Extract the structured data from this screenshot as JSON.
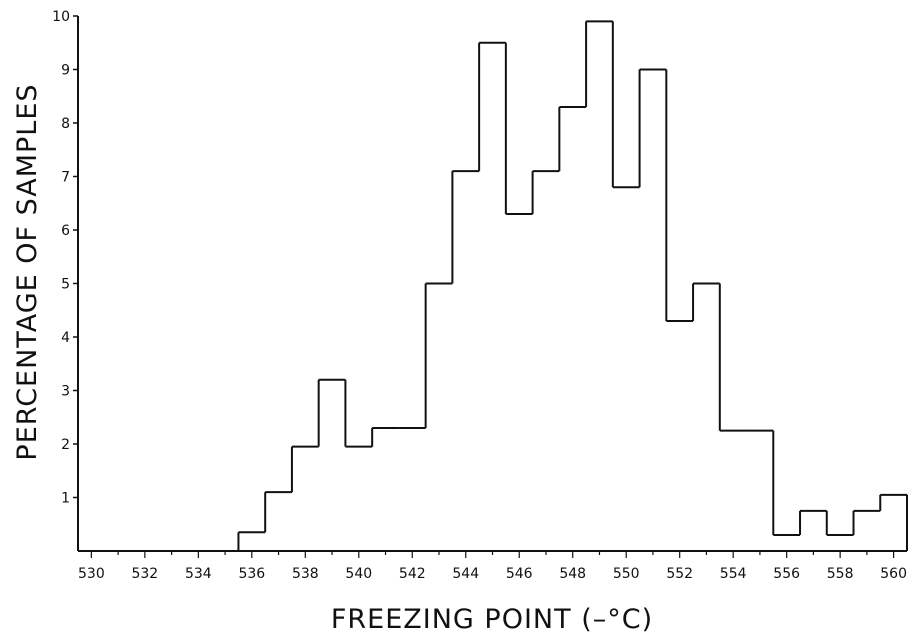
{
  "chart_data": {
    "type": "bar",
    "subtype": "histogram-step",
    "title": "",
    "xlabel": "FREEZING POINT (–°C)",
    "ylabel": "PERCENTAGE OF SAMPLES",
    "xlim": [
      529.5,
      560.5
    ],
    "ylim": [
      0,
      10
    ],
    "x_ticks": [
      530,
      532,
      534,
      536,
      538,
      540,
      542,
      544,
      546,
      548,
      550,
      552,
      554,
      556,
      558,
      560
    ],
    "y_ticks": [
      1,
      2,
      3,
      4,
      5,
      6,
      7,
      8,
      9,
      10
    ],
    "grid": false,
    "legend": "none",
    "bin_width": 1,
    "bins": [
      {
        "x": 536,
        "value": 0.35
      },
      {
        "x": 537,
        "value": 1.1
      },
      {
        "x": 538,
        "value": 1.95
      },
      {
        "x": 539,
        "value": 3.2
      },
      {
        "x": 540,
        "value": 1.95
      },
      {
        "x": 541,
        "value": 2.3
      },
      {
        "x": 542,
        "value": 2.3
      },
      {
        "x": 543,
        "value": 5.0
      },
      {
        "x": 544,
        "value": 7.1
      },
      {
        "x": 545,
        "value": 9.5
      },
      {
        "x": 546,
        "value": 6.3
      },
      {
        "x": 547,
        "value": 7.1
      },
      {
        "x": 548,
        "value": 8.3
      },
      {
        "x": 549,
        "value": 9.9
      },
      {
        "x": 550,
        "value": 6.8
      },
      {
        "x": 551,
        "value": 9.0
      },
      {
        "x": 552,
        "value": 4.3
      },
      {
        "x": 553,
        "value": 5.0
      },
      {
        "x": 554,
        "value": 2.25
      },
      {
        "x": 555,
        "value": 2.25
      },
      {
        "x": 556,
        "value": 0.3
      },
      {
        "x": 557,
        "value": 0.75
      },
      {
        "x": 558,
        "value": 0.3
      },
      {
        "x": 559,
        "value": 0.75
      },
      {
        "x": 560,
        "value": 1.05
      }
    ],
    "line_color": "#111111"
  }
}
